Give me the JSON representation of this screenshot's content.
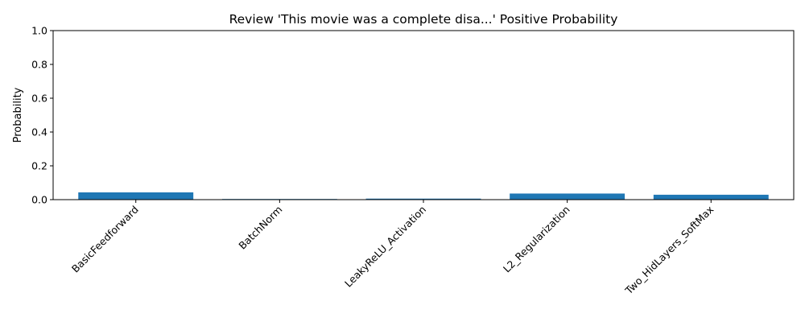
{
  "chart_data": {
    "type": "bar",
    "title": "Review 'This movie was a complete disa...' Positive Probability",
    "xlabel": "",
    "ylabel": "Probability",
    "ylim": [
      0,
      1
    ],
    "yticks": [
      0.0,
      0.2,
      0.4,
      0.6,
      0.8,
      1.0
    ],
    "ytick_labels": [
      "0.0",
      "0.2",
      "0.4",
      "0.6",
      "0.8",
      "1.0"
    ],
    "categories": [
      "BasicFeedforward",
      "BatchNorm",
      "LeakyReLU_Activation",
      "L2_Regularization",
      "Two_HidLayers_SoftMax"
    ],
    "values": [
      0.043,
      0.001,
      0.006,
      0.036,
      0.029
    ],
    "bar_color": "#1f77b4",
    "grid": false,
    "legend": "none"
  }
}
